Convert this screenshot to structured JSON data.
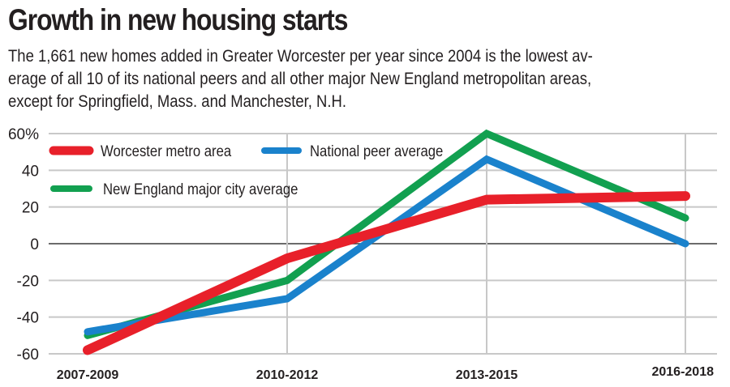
{
  "header": {
    "title": "Growth in new housing starts",
    "subtitle_lines": [
      "The 1,661 new homes added in Greater Worcester per year since 2004 is the lowest av-",
      "erage of all 10 of its national peers and all other major New England metropolitan areas,",
      "except for Springfield, Mass. and Manchester, N.H."
    ]
  },
  "chart_data": {
    "type": "line",
    "title": "Growth in new housing starts",
    "xlabel": "",
    "ylabel": "",
    "categories": [
      "2007-2009",
      "2010-2012",
      "2013-2015",
      "2016-2018"
    ],
    "yticks": [
      60,
      40,
      20,
      0,
      -20,
      -40,
      -60
    ],
    "ytick_labels": [
      "60%",
      "40",
      "20",
      "0",
      "-20",
      "-40",
      "-60"
    ],
    "ylim": [
      -60,
      60
    ],
    "grid": true,
    "legend_position": "top-left",
    "series": [
      {
        "name": "Worcester metro area",
        "color": "#e8202a",
        "values": [
          -58,
          -8,
          24,
          26
        ]
      },
      {
        "name": "National peer average",
        "color": "#1a82cc",
        "values": [
          -48,
          -30,
          46,
          0
        ]
      },
      {
        "name": "New England major city average",
        "color": "#12a050",
        "values": [
          -50,
          -20,
          60,
          14
        ]
      }
    ]
  }
}
